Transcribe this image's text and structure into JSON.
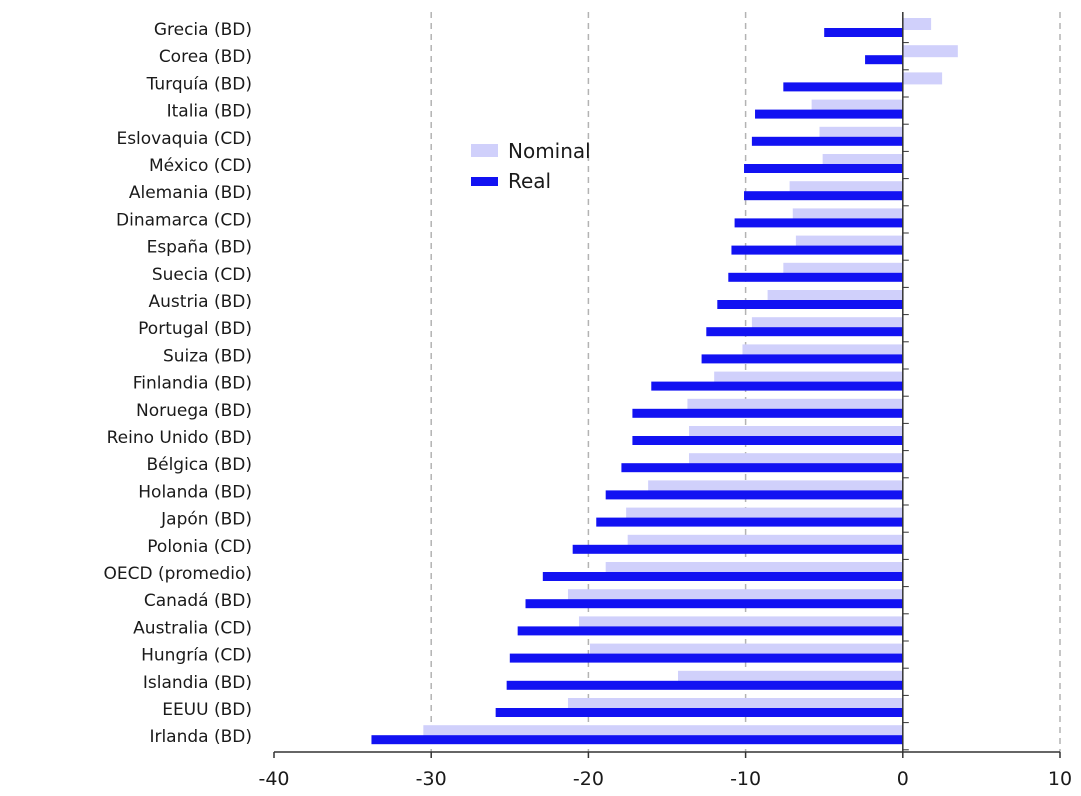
{
  "chart_data": {
    "type": "bar",
    "orientation": "horizontal",
    "categories": [
      "Grecia (BD)",
      "Corea (BD)",
      "Turquía (BD)",
      "Italia (BD)",
      "Eslovaquia (CD)",
      "México (CD)",
      "Alemania (BD)",
      "Dinamarca (CD)",
      "España (BD)",
      "Suecia (CD)",
      "Austria (BD)",
      "Portugal (BD)",
      "Suiza (BD)",
      "Finlandia (BD)",
      "Noruega (BD)",
      "Reino Unido (BD)",
      "Bélgica (BD)",
      "Holanda (BD)",
      "Japón (BD)",
      "Polonia (CD)",
      "OECD (promedio)",
      "Canadá (BD)",
      "Australia (CD)",
      "Hungría (CD)",
      "Islandia (BD)",
      "EEUU (BD)",
      "Irlanda (BD)"
    ],
    "series": [
      {
        "name": "Nominal",
        "color": "#d0d0fb",
        "values": [
          1.8,
          3.5,
          2.5,
          -5.8,
          -5.3,
          -5.1,
          -7.2,
          -7.0,
          -6.8,
          -7.6,
          -8.6,
          -9.6,
          -10.2,
          -12.0,
          -13.7,
          -13.6,
          -13.6,
          -16.2,
          -17.6,
          -17.5,
          -18.9,
          -21.3,
          -20.6,
          -19.9,
          -14.3,
          -21.3,
          -30.5
        ]
      },
      {
        "name": "Real",
        "color": "#1212f2",
        "values": [
          -5.0,
          -2.4,
          -7.6,
          -9.4,
          -9.6,
          -10.1,
          -10.1,
          -10.7,
          -10.9,
          -11.1,
          -11.8,
          -12.5,
          -12.8,
          -16.0,
          -17.2,
          -17.2,
          -17.9,
          -18.9,
          -19.5,
          -21.0,
          -22.9,
          -24.0,
          -24.5,
          -25.0,
          -25.2,
          -25.9,
          -33.8
        ]
      }
    ],
    "xlim": [
      -40,
      10
    ],
    "xticks": [
      "-40",
      "-30",
      "-20",
      "-10",
      "0",
      "10"
    ],
    "gridlines": "vertical dashed",
    "legend_position": "upper-left-inside",
    "title": "",
    "xlabel": "",
    "ylabel": ""
  }
}
